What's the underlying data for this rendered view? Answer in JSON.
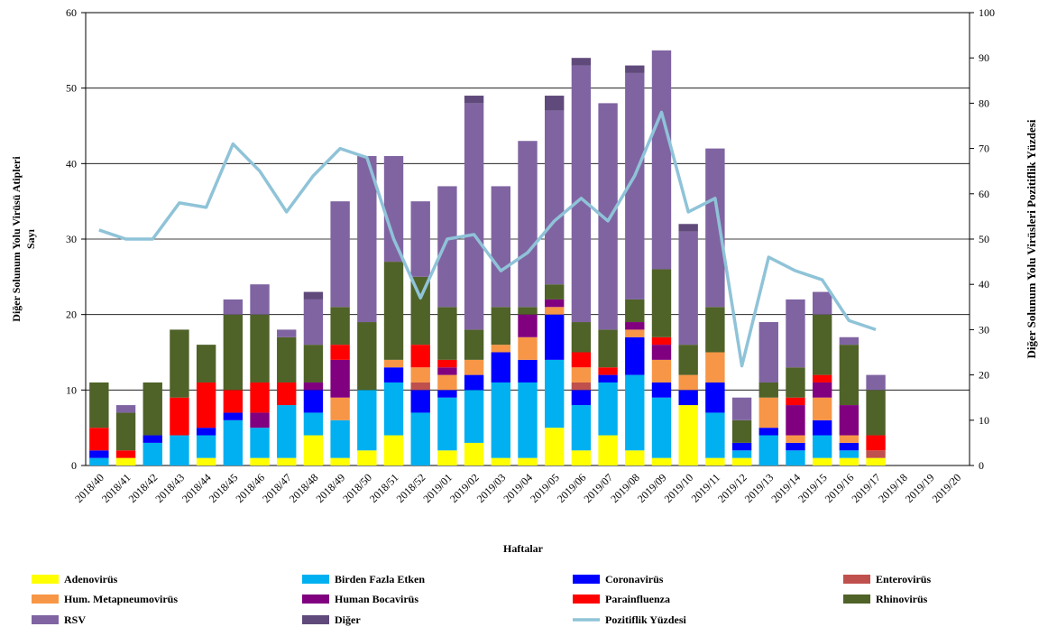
{
  "chart_data": {
    "type": "bar",
    "x_label": "Haftalar",
    "y_label": [
      "Diğer Solunum Yolu Virüsü Atipleri",
      "Sayı"
    ],
    "y2_label": "Diğer Solunum Yolu Virüsleri Pozitiflik Yüzdesi",
    "stacked": true,
    "grid": true,
    "categories": [
      "2018/40",
      "2018/41",
      "2018/42",
      "2018/43",
      "2018/44",
      "2018/45",
      "2018/46",
      "2018/47",
      "2018/48",
      "2018/49",
      "2018/50",
      "2018/51",
      "2018/52",
      "2019/01",
      "2019/02",
      "2019/03",
      "2019/04",
      "2019/05",
      "2019/06",
      "2019/07",
      "2019/08",
      "2019/09",
      "2019/10",
      "2019/11",
      "2019/12",
      "2019/13",
      "2019/14",
      "2019/15",
      "2019/16",
      "2019/17",
      "2019/18",
      "2019/19",
      "2019/20"
    ],
    "ylim": [
      0,
      60
    ],
    "yticks": [
      0,
      10,
      20,
      30,
      40,
      50,
      60
    ],
    "y2lim": [
      0,
      100
    ],
    "y2ticks": [
      0,
      10,
      20,
      30,
      40,
      50,
      60,
      70,
      80,
      90,
      100
    ],
    "series": [
      {
        "name": "Adenovirüs",
        "color": "#ffff00",
        "values": [
          0,
          1,
          0,
          0,
          1,
          0,
          1,
          1,
          4,
          1,
          2,
          4,
          0,
          2,
          3,
          1,
          1,
          5,
          2,
          4,
          2,
          1,
          8,
          1,
          1,
          0,
          0,
          1,
          1,
          1,
          0,
          0,
          0
        ]
      },
      {
        "name": "Birden Fazla Etken",
        "color": "#00b0f0",
        "values": [
          1,
          0,
          3,
          4,
          3,
          6,
          4,
          7,
          3,
          5,
          8,
          7,
          7,
          7,
          7,
          10,
          10,
          9,
          6,
          7,
          10,
          8,
          0,
          6,
          1,
          4,
          2,
          3,
          1,
          0,
          0,
          0,
          0
        ]
      },
      {
        "name": "Coronavirüs",
        "color": "#0000ff",
        "values": [
          1,
          0,
          1,
          0,
          1,
          1,
          0,
          0,
          3,
          0,
          0,
          2,
          3,
          1,
          2,
          4,
          3,
          6,
          2,
          1,
          5,
          2,
          2,
          4,
          1,
          1,
          1,
          2,
          1,
          0,
          0,
          0,
          0
        ]
      },
      {
        "name": "Enterovirüs",
        "color": "#c0504d",
        "values": [
          0,
          0,
          0,
          0,
          0,
          0,
          0,
          0,
          0,
          0,
          0,
          0,
          1,
          0,
          0,
          0,
          0,
          0,
          1,
          0,
          0,
          0,
          0,
          0,
          0,
          0,
          0,
          0,
          0,
          1,
          0,
          0,
          0
        ]
      },
      {
        "name": "Hum. Metapneumovirüs",
        "color": "#f79646",
        "values": [
          0,
          0,
          0,
          0,
          0,
          0,
          0,
          0,
          0,
          3,
          0,
          1,
          2,
          2,
          2,
          1,
          3,
          1,
          2,
          0,
          1,
          3,
          2,
          4,
          0,
          4,
          1,
          3,
          1,
          0,
          0,
          0,
          0
        ]
      },
      {
        "name": "Human Bocavirüs",
        "color": "#800080",
        "values": [
          0,
          0,
          0,
          0,
          0,
          0,
          2,
          0,
          1,
          5,
          0,
          0,
          0,
          1,
          0,
          0,
          3,
          1,
          0,
          0,
          1,
          2,
          0,
          0,
          0,
          0,
          4,
          2,
          4,
          0,
          0,
          0,
          0
        ]
      },
      {
        "name": "Parainfluenza",
        "color": "#ff0000",
        "values": [
          3,
          1,
          0,
          5,
          6,
          3,
          4,
          3,
          0,
          2,
          0,
          0,
          3,
          1,
          0,
          0,
          0,
          0,
          2,
          1,
          0,
          1,
          0,
          0,
          0,
          0,
          1,
          1,
          0,
          2,
          0,
          0,
          0
        ]
      },
      {
        "name": "Rhinovirüs",
        "color": "#4f6228",
        "values": [
          6,
          5,
          7,
          9,
          5,
          10,
          9,
          6,
          5,
          5,
          9,
          13,
          9,
          7,
          4,
          5,
          1,
          2,
          4,
          5,
          3,
          9,
          4,
          6,
          3,
          2,
          4,
          8,
          8,
          6,
          0,
          0,
          0
        ]
      },
      {
        "name": "RSV",
        "color": "#8064a2",
        "values": [
          0,
          1,
          0,
          0,
          0,
          2,
          4,
          1,
          6,
          14,
          22,
          14,
          10,
          16,
          30,
          16,
          22,
          23,
          34,
          30,
          30,
          29,
          15,
          21,
          3,
          8,
          9,
          3,
          1,
          2,
          0,
          0,
          0
        ]
      },
      {
        "name": "Diğer",
        "color": "#604a7b",
        "values": [
          0,
          0,
          0,
          0,
          0,
          0,
          0,
          0,
          1,
          0,
          0,
          0,
          0,
          0,
          1,
          0,
          0,
          2,
          1,
          0,
          1,
          0,
          1,
          0,
          0,
          0,
          0,
          0,
          0,
          0,
          0,
          0,
          0
        ]
      },
      {
        "name": "Pozitiflik Yüzdesi",
        "type": "line",
        "axis": "y2",
        "color": "#8fc3d8",
        "values": [
          52,
          50,
          50,
          58,
          57,
          71,
          65,
          56,
          64,
          70,
          68,
          50,
          37,
          50,
          51,
          43,
          47,
          54,
          59,
          54,
          64,
          78,
          56,
          59,
          22,
          46,
          43,
          41,
          32,
          30,
          null,
          null,
          null
        ]
      }
    ]
  }
}
